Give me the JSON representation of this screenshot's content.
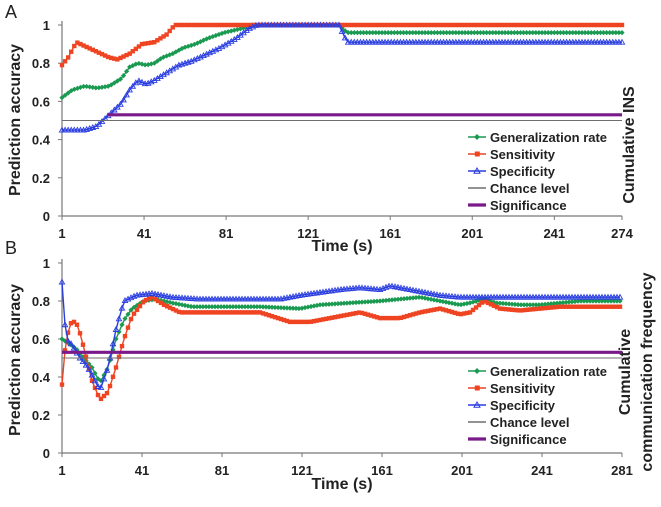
{
  "chart_data": [
    {
      "panel_label": "A",
      "type": "line",
      "xlabel": "Time (s)",
      "ylabel": "Prediction accuracy",
      "right_label": [
        "Cumulative INS"
      ],
      "xlim": [
        1,
        274
      ],
      "ylim": [
        0,
        1
      ],
      "xticks": [
        1,
        41,
        81,
        121,
        161,
        201,
        241,
        274
      ],
      "yticks": [
        0,
        0.2,
        0.4,
        0.6,
        0.8,
        1
      ],
      "ytick_labels": [
        "0",
        "0.2",
        "0.4",
        "0.6",
        "0.8",
        "1"
      ],
      "legend_position": "bottom-right",
      "series": [
        {
          "name": "Generalization rate",
          "color": "#1a9a50",
          "marker": "diamond",
          "points": [
            [
              1,
              0.62
            ],
            [
              6,
              0.66
            ],
            [
              12,
              0.68
            ],
            [
              18,
              0.67
            ],
            [
              24,
              0.68
            ],
            [
              30,
              0.72
            ],
            [
              34,
              0.78
            ],
            [
              38,
              0.8
            ],
            [
              42,
              0.79
            ],
            [
              46,
              0.8
            ],
            [
              50,
              0.83
            ],
            [
              55,
              0.85
            ],
            [
              60,
              0.88
            ],
            [
              66,
              0.9
            ],
            [
              72,
              0.93
            ],
            [
              80,
              0.96
            ],
            [
              88,
              0.98
            ],
            [
              94,
              1.0
            ],
            [
              136,
              1.0
            ],
            [
              140,
              0.96
            ],
            [
              274,
              0.96
            ]
          ]
        },
        {
          "name": "Sensitivity",
          "color": "#ee4422",
          "marker": "square",
          "points": [
            [
              1,
              0.79
            ],
            [
              4,
              0.83
            ],
            [
              8,
              0.91
            ],
            [
              12,
              0.89
            ],
            [
              18,
              0.86
            ],
            [
              24,
              0.83
            ],
            [
              28,
              0.82
            ],
            [
              34,
              0.85
            ],
            [
              40,
              0.9
            ],
            [
              46,
              0.91
            ],
            [
              52,
              0.95
            ],
            [
              56,
              1.0
            ],
            [
              274,
              1.0
            ]
          ]
        },
        {
          "name": "Specificity",
          "color": "#2a3ee0",
          "marker": "triangle",
          "points": [
            [
              1,
              0.45
            ],
            [
              12,
              0.45
            ],
            [
              18,
              0.47
            ],
            [
              24,
              0.53
            ],
            [
              30,
              0.59
            ],
            [
              34,
              0.66
            ],
            [
              38,
              0.71
            ],
            [
              42,
              0.69
            ],
            [
              46,
              0.71
            ],
            [
              52,
              0.75
            ],
            [
              58,
              0.79
            ],
            [
              64,
              0.81
            ],
            [
              70,
              0.84
            ],
            [
              78,
              0.88
            ],
            [
              86,
              0.93
            ],
            [
              92,
              0.98
            ],
            [
              96,
              1.0
            ],
            [
              136,
              1.0
            ],
            [
              140,
              0.91
            ],
            [
              274,
              0.91
            ]
          ]
        },
        {
          "name": "Chance level",
          "color": "#6e6e6e",
          "marker": "none",
          "points": [
            [
              1,
              0.5
            ],
            [
              274,
              0.5
            ]
          ]
        },
        {
          "name": "Significance",
          "color": "#7a1a8a",
          "marker": "none",
          "points": [
            [
              23,
              0.53
            ],
            [
              274,
              0.53
            ]
          ]
        }
      ]
    },
    {
      "panel_label": "B",
      "type": "line",
      "xlabel": "Time (s)",
      "ylabel": "Prediction accuracy",
      "right_label": [
        "Cumulative",
        "communication frequency"
      ],
      "xlim": [
        1,
        281
      ],
      "ylim": [
        0,
        1
      ],
      "xticks": [
        1,
        41,
        81,
        121,
        161,
        201,
        241,
        281
      ],
      "yticks": [
        0,
        0.2,
        0.4,
        0.6,
        0.8,
        1
      ],
      "ytick_labels": [
        "0",
        "0.2",
        "0.4",
        "0.6",
        "0.8",
        "1"
      ],
      "legend_position": "bottom-right",
      "series": [
        {
          "name": "Generalization rate",
          "color": "#1a9a50",
          "marker": "diamond",
          "points": [
            [
              1,
              0.6
            ],
            [
              4,
              0.58
            ],
            [
              8,
              0.55
            ],
            [
              12,
              0.5
            ],
            [
              16,
              0.45
            ],
            [
              20,
              0.37
            ],
            [
              24,
              0.45
            ],
            [
              28,
              0.6
            ],
            [
              32,
              0.7
            ],
            [
              36,
              0.76
            ],
            [
              42,
              0.8
            ],
            [
              48,
              0.81
            ],
            [
              56,
              0.79
            ],
            [
              66,
              0.77
            ],
            [
              80,
              0.77
            ],
            [
              100,
              0.77
            ],
            [
              120,
              0.76
            ],
            [
              130,
              0.78
            ],
            [
              145,
              0.79
            ],
            [
              160,
              0.8
            ],
            [
              170,
              0.81
            ],
            [
              180,
              0.82
            ],
            [
              190,
              0.8
            ],
            [
              200,
              0.78
            ],
            [
              205,
              0.79
            ],
            [
              212,
              0.81
            ],
            [
              218,
              0.79
            ],
            [
              230,
              0.78
            ],
            [
              240,
              0.78
            ],
            [
              250,
              0.79
            ],
            [
              260,
              0.8
            ],
            [
              281,
              0.8
            ]
          ]
        },
        {
          "name": "Sensitivity",
          "color": "#ee4422",
          "marker": "square",
          "points": [
            [
              1,
              0.36
            ],
            [
              3,
              0.6
            ],
            [
              6,
              0.7
            ],
            [
              9,
              0.67
            ],
            [
              12,
              0.55
            ],
            [
              16,
              0.38
            ],
            [
              20,
              0.28
            ],
            [
              24,
              0.32
            ],
            [
              28,
              0.45
            ],
            [
              32,
              0.6
            ],
            [
              36,
              0.72
            ],
            [
              42,
              0.8
            ],
            [
              46,
              0.82
            ],
            [
              52,
              0.78
            ],
            [
              60,
              0.74
            ],
            [
              80,
              0.74
            ],
            [
              100,
              0.74
            ],
            [
              115,
              0.69
            ],
            [
              125,
              0.69
            ],
            [
              140,
              0.72
            ],
            [
              150,
              0.74
            ],
            [
              160,
              0.71
            ],
            [
              170,
              0.71
            ],
            [
              180,
              0.74
            ],
            [
              190,
              0.76
            ],
            [
              200,
              0.73
            ],
            [
              205,
              0.74
            ],
            [
              212,
              0.8
            ],
            [
              220,
              0.76
            ],
            [
              230,
              0.75
            ],
            [
              250,
              0.77
            ],
            [
              281,
              0.77
            ]
          ]
        },
        {
          "name": "Specificity",
          "color": "#2a3ee0",
          "marker": "triangle",
          "points": [
            [
              1,
              0.9
            ],
            [
              3,
              0.6
            ],
            [
              6,
              0.57
            ],
            [
              10,
              0.5
            ],
            [
              14,
              0.45
            ],
            [
              20,
              0.33
            ],
            [
              24,
              0.45
            ],
            [
              28,
              0.65
            ],
            [
              32,
              0.8
            ],
            [
              38,
              0.83
            ],
            [
              46,
              0.84
            ],
            [
              56,
              0.82
            ],
            [
              70,
              0.81
            ],
            [
              90,
              0.81
            ],
            [
              110,
              0.81
            ],
            [
              120,
              0.83
            ],
            [
              140,
              0.86
            ],
            [
              150,
              0.87
            ],
            [
              160,
              0.86
            ],
            [
              165,
              0.88
            ],
            [
              175,
              0.86
            ],
            [
              190,
              0.83
            ],
            [
              200,
              0.82
            ],
            [
              215,
              0.82
            ],
            [
              230,
              0.82
            ],
            [
              281,
              0.82
            ]
          ]
        },
        {
          "name": "Chance level",
          "color": "#6e6e6e",
          "marker": "none",
          "points": [
            [
              1,
              0.5
            ],
            [
              281,
              0.5
            ]
          ]
        },
        {
          "name": "Significance",
          "color": "#7a1a8a",
          "marker": "none",
          "points": [
            [
              1,
              0.53
            ],
            [
              281,
              0.53
            ]
          ]
        }
      ]
    }
  ]
}
